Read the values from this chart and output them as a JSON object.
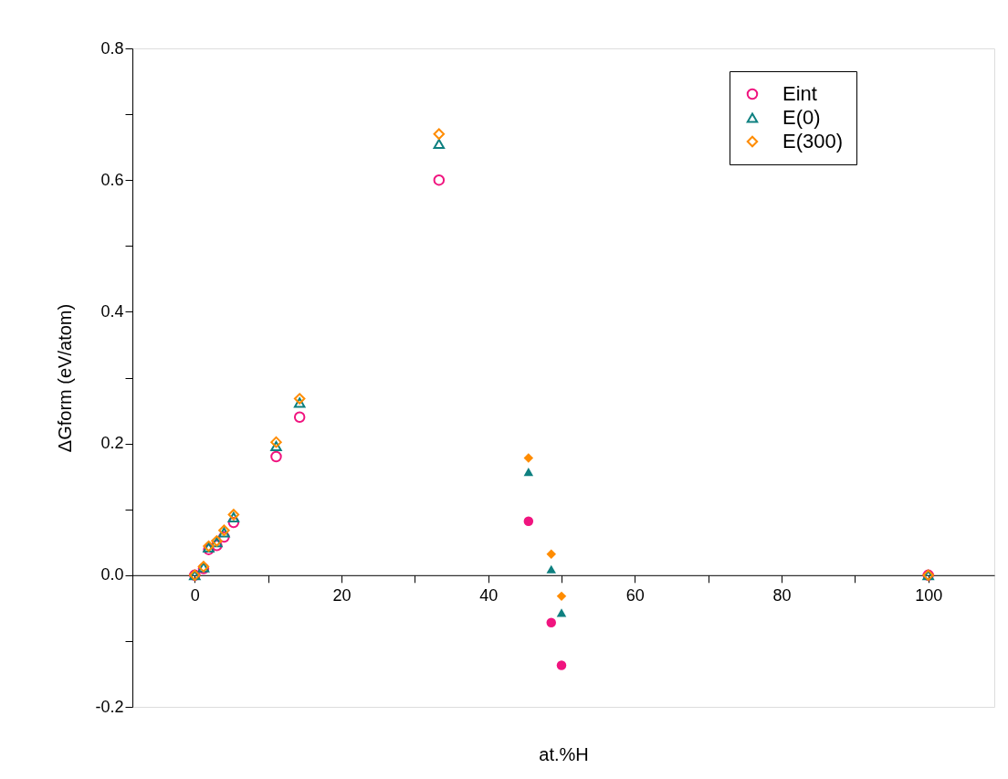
{
  "chart_data": {
    "type": "scatter",
    "xlabel": "at.%H",
    "ylabel": "ΔGform (eV/atom)",
    "xlim": [
      -8.5,
      109
    ],
    "ylim": [
      -0.2,
      0.8
    ],
    "xticks": [
      0,
      {
        "value": 10,
        "label": null
      },
      20,
      {
        "value": 30,
        "label": null
      },
      40,
      {
        "value": 50,
        "label": null
      },
      60,
      {
        "value": 70,
        "label": null
      },
      80,
      {
        "value": 90,
        "label": null
      },
      100
    ],
    "yticks": [
      -0.2,
      {
        "value": -0.1,
        "label": null
      },
      {
        "value": 0,
        "label": "0.0"
      },
      {
        "value": 0.1,
        "label": null
      },
      0.2,
      {
        "value": 0.3,
        "label": null
      },
      0.4,
      {
        "value": 0.5,
        "label": null
      },
      0.6,
      {
        "value": 0.7,
        "label": null
      },
      0.8
    ],
    "grid": false,
    "legend": "top right",
    "series": [
      {
        "name": "Eint",
        "color": "#f0147f",
        "marker": "circle",
        "x": [
          0,
          1.2,
          1.9,
          3,
          4,
          5.3,
          11.1,
          14.3,
          33.3,
          100
        ],
        "values": [
          0,
          0.01,
          0.039,
          0.045,
          0.058,
          0.08,
          0.18,
          0.24,
          0.6,
          0
        ]
      },
      {
        "name": "E(0)",
        "color": "#0e8080",
        "marker": "triangle",
        "x": [
          0,
          1.2,
          1.9,
          3,
          4,
          5.3,
          11.1,
          14.3,
          33.3,
          100
        ],
        "values": [
          0,
          0.012,
          0.042,
          0.05,
          0.065,
          0.088,
          0.196,
          0.262,
          0.655,
          0
        ]
      },
      {
        "name": "E(300)",
        "color": "#ff8c00",
        "marker": "diamond",
        "x": [
          0,
          1.2,
          1.9,
          3,
          4,
          5.3,
          11.1,
          14.3,
          33.3,
          100
        ],
        "values": [
          0,
          0.013,
          0.044,
          0.052,
          0.068,
          0.092,
          0.202,
          0.268,
          0.67,
          0
        ]
      },
      {
        "color": "#f0147f",
        "marker": "circle",
        "x": [
          45.5,
          48.6,
          50
        ],
        "values": [
          0.082,
          -0.072,
          -0.137
        ]
      },
      {
        "color": "#0e8080",
        "marker": "triangle",
        "x": [
          45.5,
          48.6,
          50
        ],
        "values": [
          0.157,
          0.009,
          -0.057
        ]
      },
      {
        "color": "#ff8c00",
        "marker": "diamond",
        "x": [
          45.5,
          48.6,
          50
        ],
        "values": [
          0.178,
          0.032,
          -0.032
        ]
      }
    ]
  }
}
